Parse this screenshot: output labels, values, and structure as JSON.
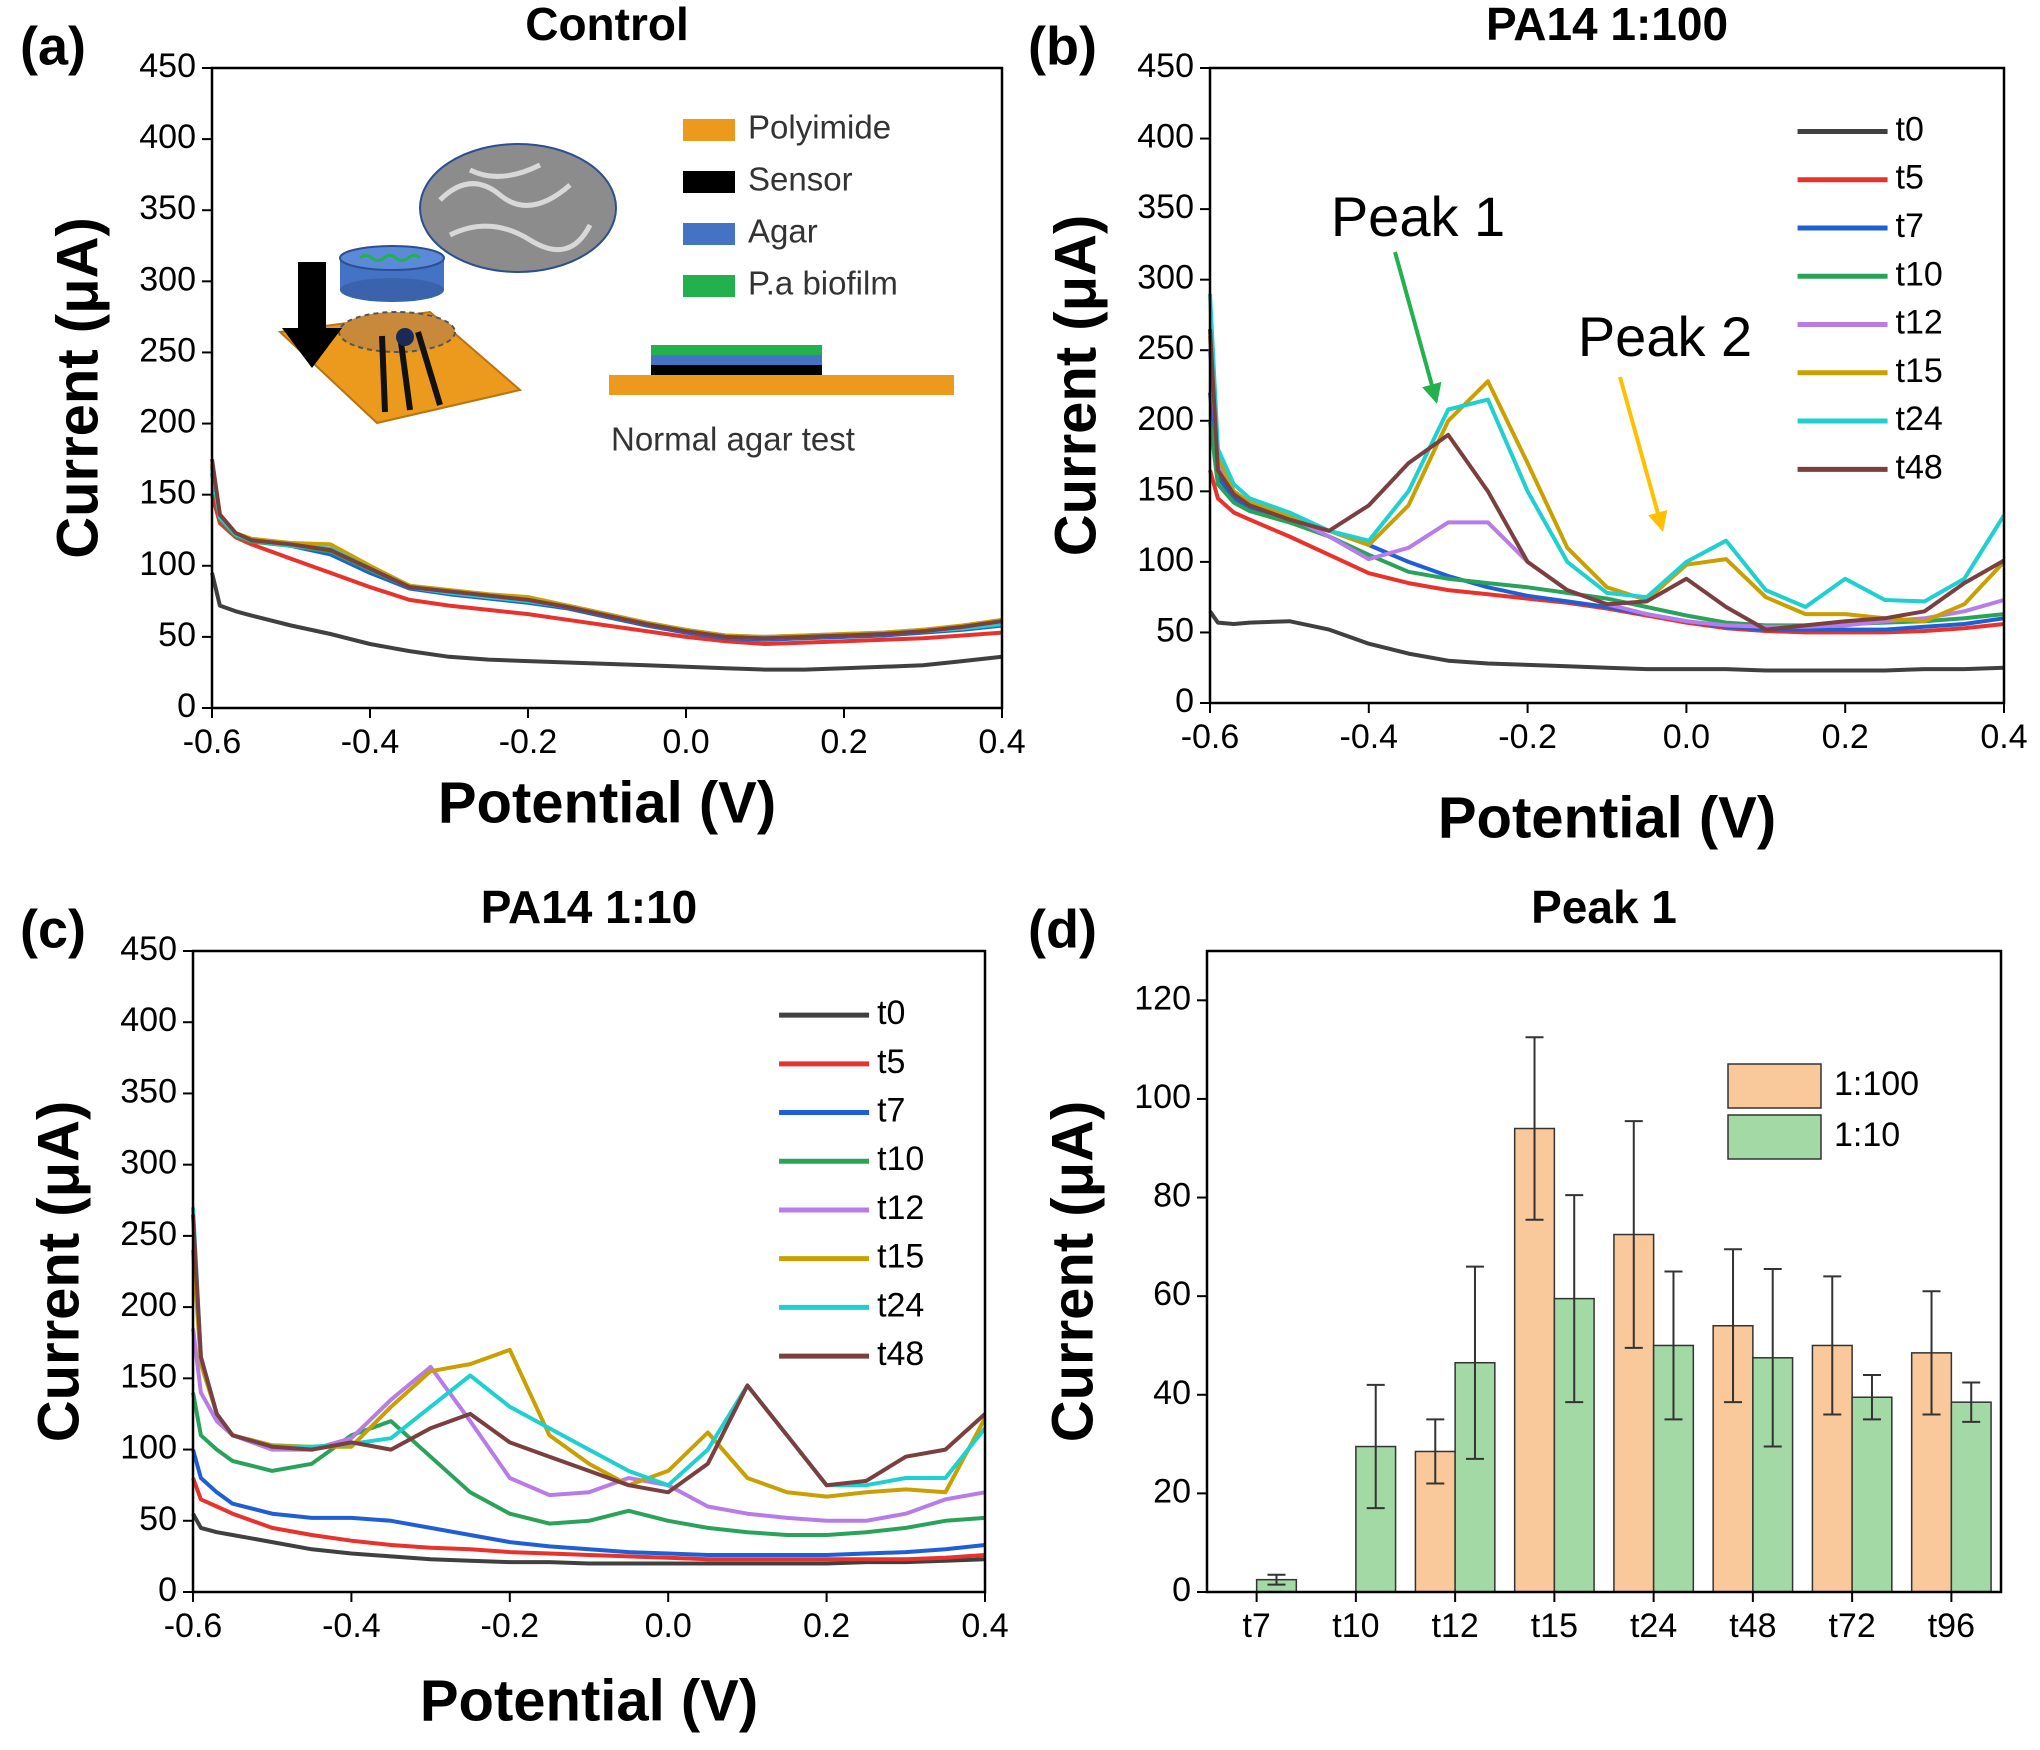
{
  "chart_data": [
    {
      "type": "line",
      "panel_label": "(a)",
      "title": "Control",
      "x_label": "Potential (V)",
      "y_label": "Current (μA)",
      "x": [
        -0.6,
        -0.59,
        -0.57,
        -0.55,
        -0.5,
        -0.45,
        -0.4,
        -0.35,
        -0.3,
        -0.25,
        -0.2,
        -0.15,
        -0.1,
        -0.05,
        0,
        0.05,
        0.1,
        0.15,
        0.2,
        0.25,
        0.3,
        0.35,
        0.4
      ],
      "xlim": [
        -0.6,
        0.4
      ],
      "ylim": [
        0,
        450
      ],
      "xticks": [
        -0.6,
        -0.4,
        -0.2,
        {
          "value": 0,
          "label": "0.0"
        },
        0.2,
        0.4
      ],
      "yticks": [
        0,
        50,
        100,
        150,
        200,
        250,
        300,
        350,
        400,
        450
      ],
      "series": [
        {
          "color": "#404040",
          "values": [
            95,
            72,
            68,
            65,
            58,
            52,
            45,
            40,
            36,
            34,
            33,
            32,
            31,
            30,
            29,
            28,
            27,
            27,
            28,
            29,
            30,
            33,
            36
          ]
        },
        {
          "color": "#e8322b",
          "values": [
            150,
            130,
            120,
            115,
            105,
            95,
            85,
            76,
            72,
            69,
            66,
            62,
            58,
            54,
            50,
            47,
            45,
            46,
            47,
            48,
            49,
            51,
            53
          ]
        },
        {
          "color": "#1f5fd6",
          "values": [
            170,
            135,
            122,
            118,
            114,
            108,
            95,
            84,
            80,
            77,
            74,
            70,
            64,
            58,
            53,
            49,
            48,
            49,
            50,
            51,
            53,
            55,
            58
          ]
        },
        {
          "color": "#2aa35a",
          "values": [
            165,
            133,
            121,
            117,
            114,
            110,
            97,
            85,
            82,
            79,
            76,
            71,
            65,
            59,
            54,
            50,
            49,
            50,
            51,
            52,
            54,
            56,
            60
          ]
        },
        {
          "color": "#b77ce8",
          "values": [
            170,
            135,
            122,
            118,
            115,
            112,
            99,
            86,
            82,
            79,
            77,
            72,
            66,
            60,
            55,
            51,
            50,
            51,
            52,
            53,
            55,
            57,
            61
          ]
        },
        {
          "color": "#c9a000",
          "values": [
            172,
            136,
            123,
            119,
            116,
            115,
            100,
            86,
            83,
            80,
            78,
            72,
            66,
            60,
            55,
            51,
            50,
            51,
            52,
            53,
            55,
            58,
            62
          ]
        },
        {
          "color": "#1ed0d0",
          "values": [
            168,
            134,
            122,
            118,
            114,
            112,
            98,
            85,
            81,
            78,
            75,
            71,
            65,
            59,
            54,
            50,
            49,
            50,
            51,
            52,
            54,
            56,
            59
          ]
        },
        {
          "color": "#7b3f3f",
          "values": [
            175,
            136,
            123,
            118,
            115,
            111,
            98,
            85,
            82,
            79,
            76,
            71,
            65,
            59,
            54,
            50,
            49,
            50,
            51,
            52,
            54,
            57,
            61
          ]
        }
      ],
      "inset": {
        "legend": [
          {
            "label": "Polyimide",
            "color": "#eb9a1e"
          },
          {
            "label": "Sensor",
            "color": "#000000"
          },
          {
            "label": "Agar",
            "color": "#4472c4"
          },
          {
            "label": "P.a biofilm",
            "color": "#22b14c"
          }
        ],
        "caption": "Normal agar test"
      }
    },
    {
      "type": "line",
      "panel_label": "(b)",
      "title": "PA14 1:100",
      "x_label": "Potential (V)",
      "y_label": "Current (μA)",
      "x": [
        -0.6,
        -0.59,
        -0.57,
        -0.55,
        -0.5,
        -0.45,
        -0.4,
        -0.35,
        -0.3,
        -0.25,
        -0.2,
        -0.15,
        -0.1,
        -0.05,
        0,
        0.05,
        0.1,
        0.15,
        0.2,
        0.25,
        0.3,
        0.35,
        0.4
      ],
      "xlim": [
        -0.6,
        0.4
      ],
      "ylim": [
        0,
        450
      ],
      "xticks": [
        -0.6,
        -0.4,
        -0.2,
        {
          "value": 0,
          "label": "0.0"
        },
        0.2,
        0.4
      ],
      "yticks": [
        0,
        50,
        100,
        150,
        200,
        250,
        300,
        350,
        400,
        450
      ],
      "series": [
        {
          "name": "t0",
          "color": "#404040",
          "values": [
            65,
            57,
            56,
            57,
            58,
            52,
            42,
            35,
            30,
            28,
            27,
            26,
            25,
            24,
            24,
            24,
            23,
            23,
            23,
            23,
            24,
            24,
            25
          ]
        },
        {
          "name": "t5",
          "color": "#e8322b",
          "values": [
            165,
            145,
            135,
            130,
            118,
            105,
            92,
            85,
            80,
            77,
            74,
            71,
            67,
            62,
            57,
            53,
            51,
            50,
            50,
            50,
            51,
            53,
            56
          ]
        },
        {
          "name": "t7",
          "color": "#1f5fd6",
          "values": [
            220,
            160,
            145,
            138,
            130,
            122,
            112,
            100,
            90,
            82,
            76,
            72,
            68,
            63,
            58,
            54,
            52,
            52,
            52,
            52,
            54,
            56,
            60
          ]
        },
        {
          "name": "t10",
          "color": "#2aa35a",
          "values": [
            200,
            155,
            142,
            136,
            128,
            118,
            105,
            93,
            88,
            85,
            82,
            78,
            74,
            68,
            62,
            57,
            55,
            55,
            56,
            57,
            58,
            60,
            63
          ]
        },
        {
          "name": "t12",
          "color": "#b77ce8",
          "values": [
            250,
            170,
            150,
            142,
            132,
            118,
            102,
            110,
            128,
            128,
            100,
            80,
            70,
            63,
            58,
            55,
            54,
            54,
            55,
            58,
            60,
            65,
            73
          ]
        },
        {
          "name": "t15",
          "color": "#c9a000",
          "values": [
            260,
            175,
            150,
            142,
            132,
            122,
            112,
            140,
            200,
            228,
            170,
            110,
            82,
            73,
            98,
            102,
            75,
            63,
            63,
            60,
            58,
            70,
            100
          ]
        },
        {
          "name": "t24",
          "color": "#1ed0d0",
          "values": [
            290,
            180,
            155,
            145,
            135,
            122,
            115,
            150,
            208,
            215,
            150,
            100,
            78,
            75,
            100,
            115,
            80,
            68,
            88,
            73,
            72,
            88,
            133
          ]
        },
        {
          "name": "t48",
          "color": "#7b3f3f",
          "values": [
            265,
            165,
            148,
            140,
            130,
            122,
            140,
            170,
            190,
            150,
            100,
            80,
            70,
            72,
            88,
            68,
            52,
            55,
            58,
            60,
            65,
            85,
            101
          ]
        }
      ],
      "annotations": [
        {
          "text": "Peak 1",
          "color": "#22b14c"
        },
        {
          "text": "Peak 2",
          "color": "#ffc000"
        }
      ]
    },
    {
      "type": "line",
      "panel_label": "(c)",
      "title": "PA14 1:10",
      "x_label": "Potential (V)",
      "y_label": "Current (μA)",
      "x": [
        -0.6,
        -0.59,
        -0.57,
        -0.55,
        -0.5,
        -0.45,
        -0.4,
        -0.35,
        -0.3,
        -0.25,
        -0.2,
        -0.15,
        -0.1,
        -0.05,
        0,
        0.05,
        0.1,
        0.15,
        0.2,
        0.25,
        0.3,
        0.35,
        0.4
      ],
      "xlim": [
        -0.6,
        0.4
      ],
      "ylim": [
        0,
        450
      ],
      "xticks": [
        -0.6,
        -0.4,
        -0.2,
        {
          "value": 0,
          "label": "0.0"
        },
        0.2,
        0.4
      ],
      "yticks": [
        0,
        50,
        100,
        150,
        200,
        250,
        300,
        350,
        400,
        450
      ],
      "series": [
        {
          "name": "t0",
          "color": "#404040",
          "values": [
            55,
            45,
            42,
            40,
            35,
            30,
            27,
            25,
            23,
            22,
            21,
            21,
            20,
            20,
            20,
            20,
            20,
            20,
            20,
            21,
            21,
            22,
            23
          ]
        },
        {
          "name": "t5",
          "color": "#e8322b",
          "values": [
            80,
            65,
            60,
            55,
            45,
            40,
            36,
            33,
            31,
            30,
            28,
            27,
            26,
            25,
            24,
            23,
            23,
            23,
            23,
            23,
            23,
            24,
            26
          ]
        },
        {
          "name": "t7",
          "color": "#1f5fd6",
          "values": [
            100,
            80,
            70,
            62,
            55,
            52,
            52,
            50,
            45,
            40,
            35,
            32,
            30,
            28,
            27,
            26,
            26,
            26,
            26,
            27,
            28,
            30,
            33
          ]
        },
        {
          "name": "t10",
          "color": "#2aa35a",
          "values": [
            140,
            110,
            100,
            92,
            85,
            90,
            110,
            120,
            95,
            70,
            55,
            48,
            50,
            57,
            50,
            45,
            42,
            40,
            40,
            42,
            45,
            50,
            52
          ]
        },
        {
          "name": "t12",
          "color": "#b77ce8",
          "values": [
            185,
            140,
            120,
            110,
            100,
            100,
            108,
            135,
            158,
            120,
            80,
            68,
            70,
            80,
            75,
            60,
            55,
            52,
            50,
            50,
            55,
            65,
            70
          ]
        },
        {
          "name": "t15",
          "color": "#c9a000",
          "values": [
            240,
            160,
            125,
            110,
            103,
            102,
            102,
            130,
            155,
            160,
            170,
            110,
            90,
            75,
            85,
            112,
            80,
            70,
            67,
            70,
            72,
            70,
            122
          ]
        },
        {
          "name": "t24",
          "color": "#1ed0d0",
          "values": [
            270,
            165,
            125,
            110,
            102,
            102,
            104,
            108,
            130,
            152,
            130,
            115,
            100,
            85,
            75,
            100,
            145,
            110,
            75,
            75,
            80,
            80,
            115
          ]
        },
        {
          "name": "t48",
          "color": "#7b3f3f",
          "values": [
            265,
            165,
            125,
            110,
            102,
            100,
            105,
            100,
            115,
            125,
            105,
            95,
            85,
            75,
            70,
            90,
            145,
            110,
            75,
            78,
            95,
            100,
            125
          ]
        }
      ]
    },
    {
      "type": "bar",
      "panel_label": "(d)",
      "title": "Peak 1",
      "y_label": "Current (μA)",
      "categories": [
        "t7",
        "t10",
        "t12",
        "t15",
        "t24",
        "t48",
        "t72",
        "t96"
      ],
      "ylim": [
        0,
        130
      ],
      "yticks": [
        0,
        20,
        40,
        60,
        80,
        100,
        120
      ],
      "series": [
        {
          "name": "1:100",
          "color": "#f9c89b",
          "values": [
            null,
            null,
            28.5,
            94,
            72.5,
            54,
            50,
            48.5
          ],
          "errors": [
            null,
            null,
            6.5,
            18.5,
            23,
            15.5,
            14,
            12.5
          ]
        },
        {
          "name": "1:10",
          "color": "#a3d9a5",
          "values": [
            2.5,
            29.5,
            46.5,
            59.5,
            50,
            47.5,
            39.5,
            38.5
          ],
          "errors": [
            1,
            12.5,
            19.5,
            21,
            15,
            18,
            4.5,
            4
          ]
        }
      ]
    }
  ]
}
